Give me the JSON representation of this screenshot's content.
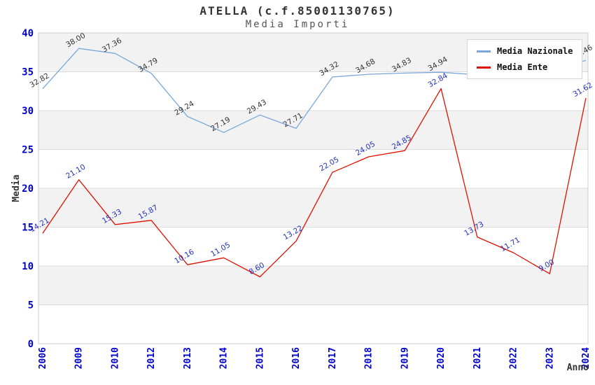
{
  "chart_data": {
    "type": "line",
    "title": "ATELLA (c.f.85001130765)",
    "subtitle": "Media Importi",
    "xlabel": "Anno",
    "ylabel": "Media",
    "ylim": [
      0,
      40
    ],
    "ytick_step": 5,
    "grid": "horizontal-lines-with-alternating-bands",
    "legend_position": "top-right",
    "categories": [
      "2006",
      "2009",
      "2010",
      "2012",
      "2013",
      "2014",
      "2015",
      "2016",
      "2017",
      "2018",
      "2019",
      "2020",
      "2021",
      "2022",
      "2023",
      "2024"
    ],
    "series": [
      {
        "name": "Media Nazionale",
        "color": "#7aa7db",
        "label_color": "#333333",
        "values": [
          32.82,
          38.0,
          37.36,
          34.79,
          29.24,
          27.19,
          29.43,
          27.71,
          34.32,
          34.68,
          34.83,
          34.94,
          34.6,
          34.6,
          35.1,
          36.46
        ],
        "labels": [
          "32.82",
          "38.00",
          "37.36",
          "34.79",
          "29.24",
          "27.19",
          "29.43",
          "27.71",
          "34.32",
          "34.68",
          "34.83",
          "34.94",
          null,
          null,
          null,
          "36.46"
        ]
      },
      {
        "name": "Media Ente",
        "color": "#e01000",
        "label_color": "#2233bb",
        "values": [
          14.21,
          21.1,
          15.33,
          15.87,
          10.16,
          11.05,
          8.6,
          13.22,
          22.05,
          24.05,
          24.85,
          32.84,
          13.73,
          11.71,
          9.0,
          31.62
        ],
        "labels": [
          "14.21",
          "21.10",
          "15.33",
          "15.87",
          "10.16",
          "11.05",
          "8.60",
          "13.22",
          "22.05",
          "24.05",
          "24.85",
          "32.84",
          "13.73",
          "11.71",
          "9.00",
          "31.62"
        ]
      }
    ],
    "colors": {
      "band": "#f2f2f2",
      "grid": "#dcdcdc",
      "plot_border": "#cccccc",
      "tick_label": "#0000cc",
      "axis_title": "#333333"
    }
  }
}
